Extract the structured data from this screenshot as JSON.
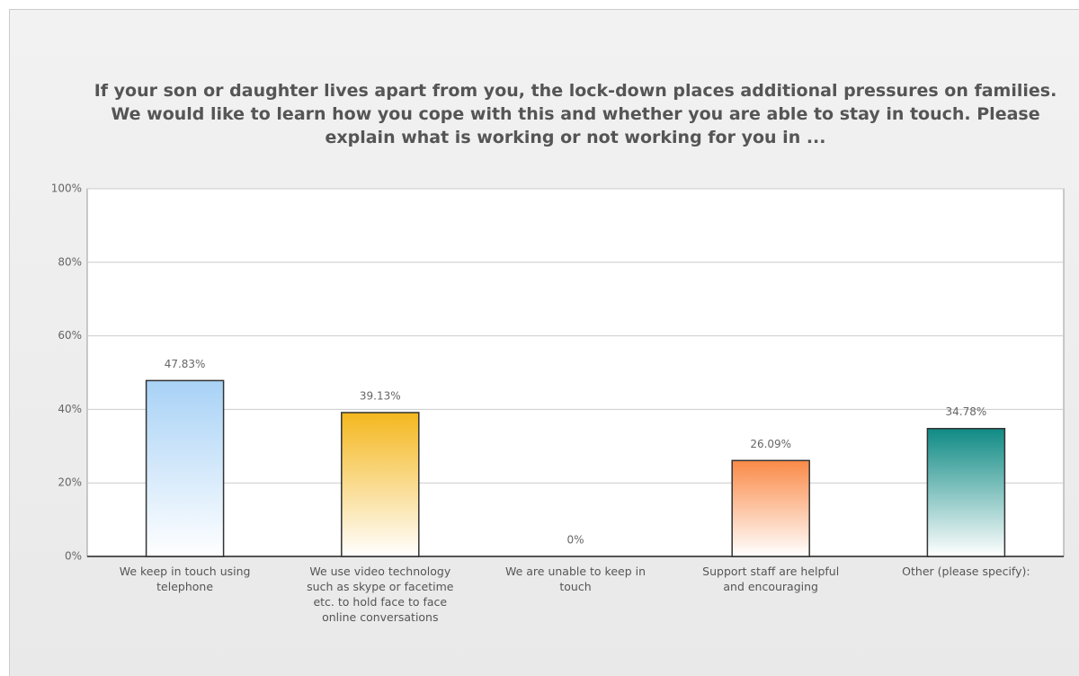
{
  "chart_data": {
    "type": "bar",
    "title": "If your son or daughter lives apart from you, the lock-down places additional pressures on families. We would like to learn how you cope with this and whether you are able to stay in touch. Please explain what is working or not working for you in ...",
    "categories": [
      "We keep in touch using telephone",
      "We use video technology such as skype or facetime etc. to hold face to face online conversations",
      "We are unable to keep in touch",
      "Support staff are helpful and encouraging",
      "Other (please specify):"
    ],
    "values": [
      47.83,
      39.13,
      0,
      26.09,
      34.78
    ],
    "value_labels": [
      "47.83%",
      "39.13%",
      "0%",
      "26.09%",
      "34.78%"
    ],
    "colors": [
      "#a8d2f6",
      "#f4b71e",
      null,
      "#fa8a48",
      "#0f8a84"
    ],
    "ylim": [
      0,
      100
    ],
    "yticks": [
      {
        "value": 0,
        "label": "0%"
      },
      {
        "value": 20,
        "label": "20%"
      },
      {
        "value": 40,
        "label": "40%"
      },
      {
        "value": 60,
        "label": "60%"
      },
      {
        "value": 80,
        "label": "80%"
      },
      {
        "value": 100,
        "label": "100%"
      }
    ],
    "grid": true
  }
}
